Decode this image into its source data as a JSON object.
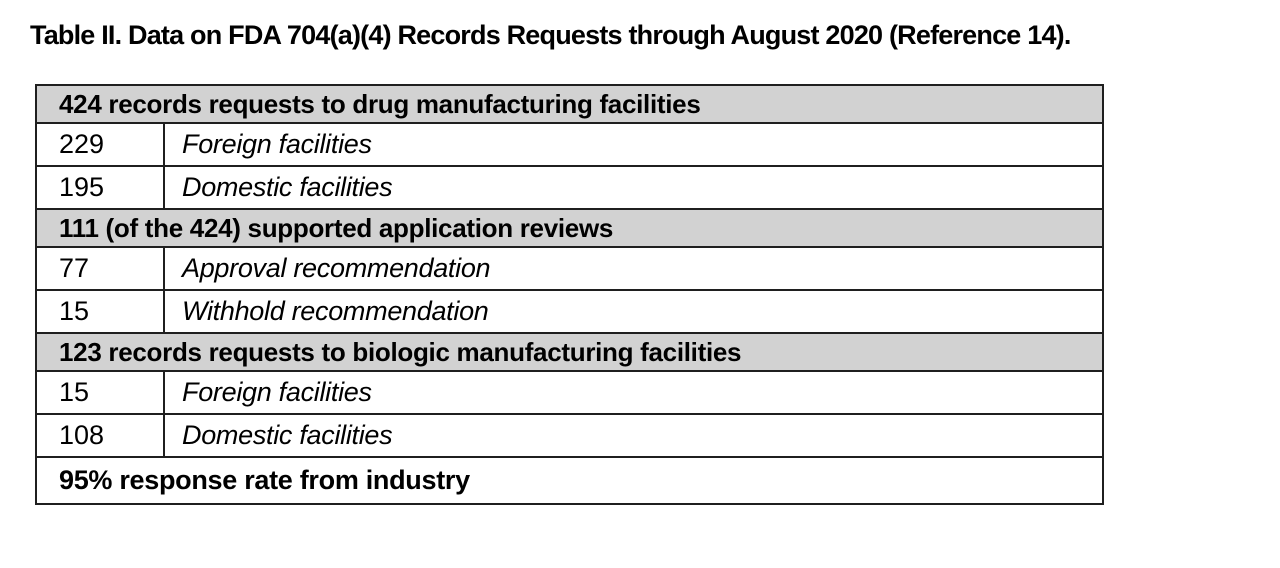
{
  "caption": "Table II. Data on FDA 704(a)(4) Records Requests through August 2020 (Reference 14).",
  "table": {
    "sections": [
      {
        "header": "424 records requests to drug manufacturing facilities",
        "rows": [
          {
            "value": "229",
            "label": "Foreign facilities"
          },
          {
            "value": "195",
            "label": "Domestic facilities"
          }
        ]
      },
      {
        "header": "111 (of the 424) supported application reviews",
        "rows": [
          {
            "value": "77",
            "label": "Approval recommendation"
          },
          {
            "value": "15",
            "label": "Withhold recommendation"
          }
        ]
      },
      {
        "header": "123 records requests to biologic manufacturing facilities",
        "rows": [
          {
            "value": "15",
            "label": "Foreign facilities"
          },
          {
            "value": "108",
            "label": "Domestic facilities"
          }
        ]
      }
    ],
    "footer": "95% response rate from industry"
  },
  "colors": {
    "page_bg": "#ffffff",
    "header_bg": "#d2d2d2",
    "border": "#1f1f1f",
    "text": "#000000"
  }
}
